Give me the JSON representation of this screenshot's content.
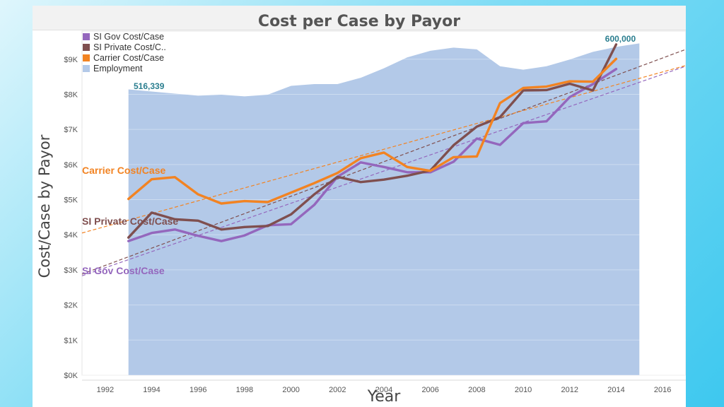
{
  "chart_data": {
    "type": "line",
    "title": "Cost per Case by Payor",
    "xlabel": "Year",
    "ylabel": "Cost/Case by Payor",
    "xlim": [
      1991,
      2017
    ],
    "ylim": [
      0,
      9800
    ],
    "x_ticks": [
      1992,
      1994,
      1996,
      1998,
      2000,
      2002,
      2004,
      2006,
      2008,
      2010,
      2012,
      2014,
      2016
    ],
    "y_ticks": [
      {
        "value": 0,
        "label": "$0K"
      },
      {
        "value": 1000,
        "label": "$1K"
      },
      {
        "value": 2000,
        "label": "$2K"
      },
      {
        "value": 3000,
        "label": "$3K"
      },
      {
        "value": 4000,
        "label": "$4K"
      },
      {
        "value": 5000,
        "label": "$5K"
      },
      {
        "value": 6000,
        "label": "$6K"
      },
      {
        "value": 7000,
        "label": "$7K"
      },
      {
        "value": 8000,
        "label": "$8K"
      },
      {
        "value": 9000,
        "label": "$9K"
      }
    ],
    "x": [
      1993,
      1994,
      1995,
      1996,
      1997,
      1998,
      1999,
      2000,
      2001,
      2002,
      2003,
      2004,
      2005,
      2006,
      2007,
      2008,
      2009,
      2010,
      2011,
      2012,
      2013,
      2014
    ],
    "series": [
      {
        "name": "SI Gov Cost/Case",
        "line_label": "SI Gov Cost/Case",
        "color": "#9467bd",
        "values": [
          3820,
          4050,
          4150,
          3970,
          3820,
          3980,
          4270,
          4300,
          4850,
          5650,
          6060,
          5930,
          5780,
          5780,
          6080,
          6740,
          6560,
          7180,
          7230,
          7920,
          8290,
          8720
        ],
        "trend": {
          "x0": 1991,
          "y0": 2830,
          "x1": 2017,
          "y1": 8800
        }
      },
      {
        "name": "SI Private Cost/C..",
        "line_label": "SI Private Cost/Case",
        "color": "#7f4f4f",
        "values": [
          3920,
          4630,
          4440,
          4400,
          4150,
          4220,
          4250,
          4580,
          5150,
          5650,
          5500,
          5570,
          5680,
          5830,
          6550,
          7080,
          7350,
          8110,
          8120,
          8300,
          8110,
          9420
        ],
        "trend": {
          "x0": 1991,
          "y0": 2880,
          "x1": 2017,
          "y1": 9280
        }
      },
      {
        "name": "Carrier Cost/Case",
        "line_label": "Carrier Cost/Case",
        "color": "#f28322",
        "values": [
          5020,
          5580,
          5640,
          5150,
          4890,
          4960,
          4930,
          5200,
          5470,
          5760,
          6180,
          6340,
          5930,
          5820,
          6210,
          6230,
          7750,
          8180,
          8220,
          8370,
          8360,
          9010
        ],
        "trend": {
          "x0": 1991,
          "y0": 4050,
          "x1": 2017,
          "y1": 8820
        }
      }
    ],
    "area": {
      "name": "Employment",
      "color": "#b3c9e8",
      "x": [
        1993,
        1994,
        1995,
        1996,
        1997,
        1998,
        1999,
        2000,
        2001,
        2002,
        2003,
        2004,
        2005,
        2006,
        2007,
        2008,
        2009,
        2010,
        2011,
        2012,
        2013,
        2014,
        2015
      ],
      "values_on_cost_axis": [
        8140,
        8080,
        8020,
        7960,
        7990,
        7940,
        7990,
        8240,
        8290,
        8290,
        8470,
        8740,
        9050,
        9240,
        9330,
        9280,
        8800,
        8700,
        8800,
        8990,
        9210,
        9350,
        9450
      ],
      "annotations": [
        {
          "label": "516,339",
          "x": 1993
        },
        {
          "label": "600,000",
          "x": 2014
        }
      ]
    },
    "legend": {
      "position": "top-left"
    }
  }
}
